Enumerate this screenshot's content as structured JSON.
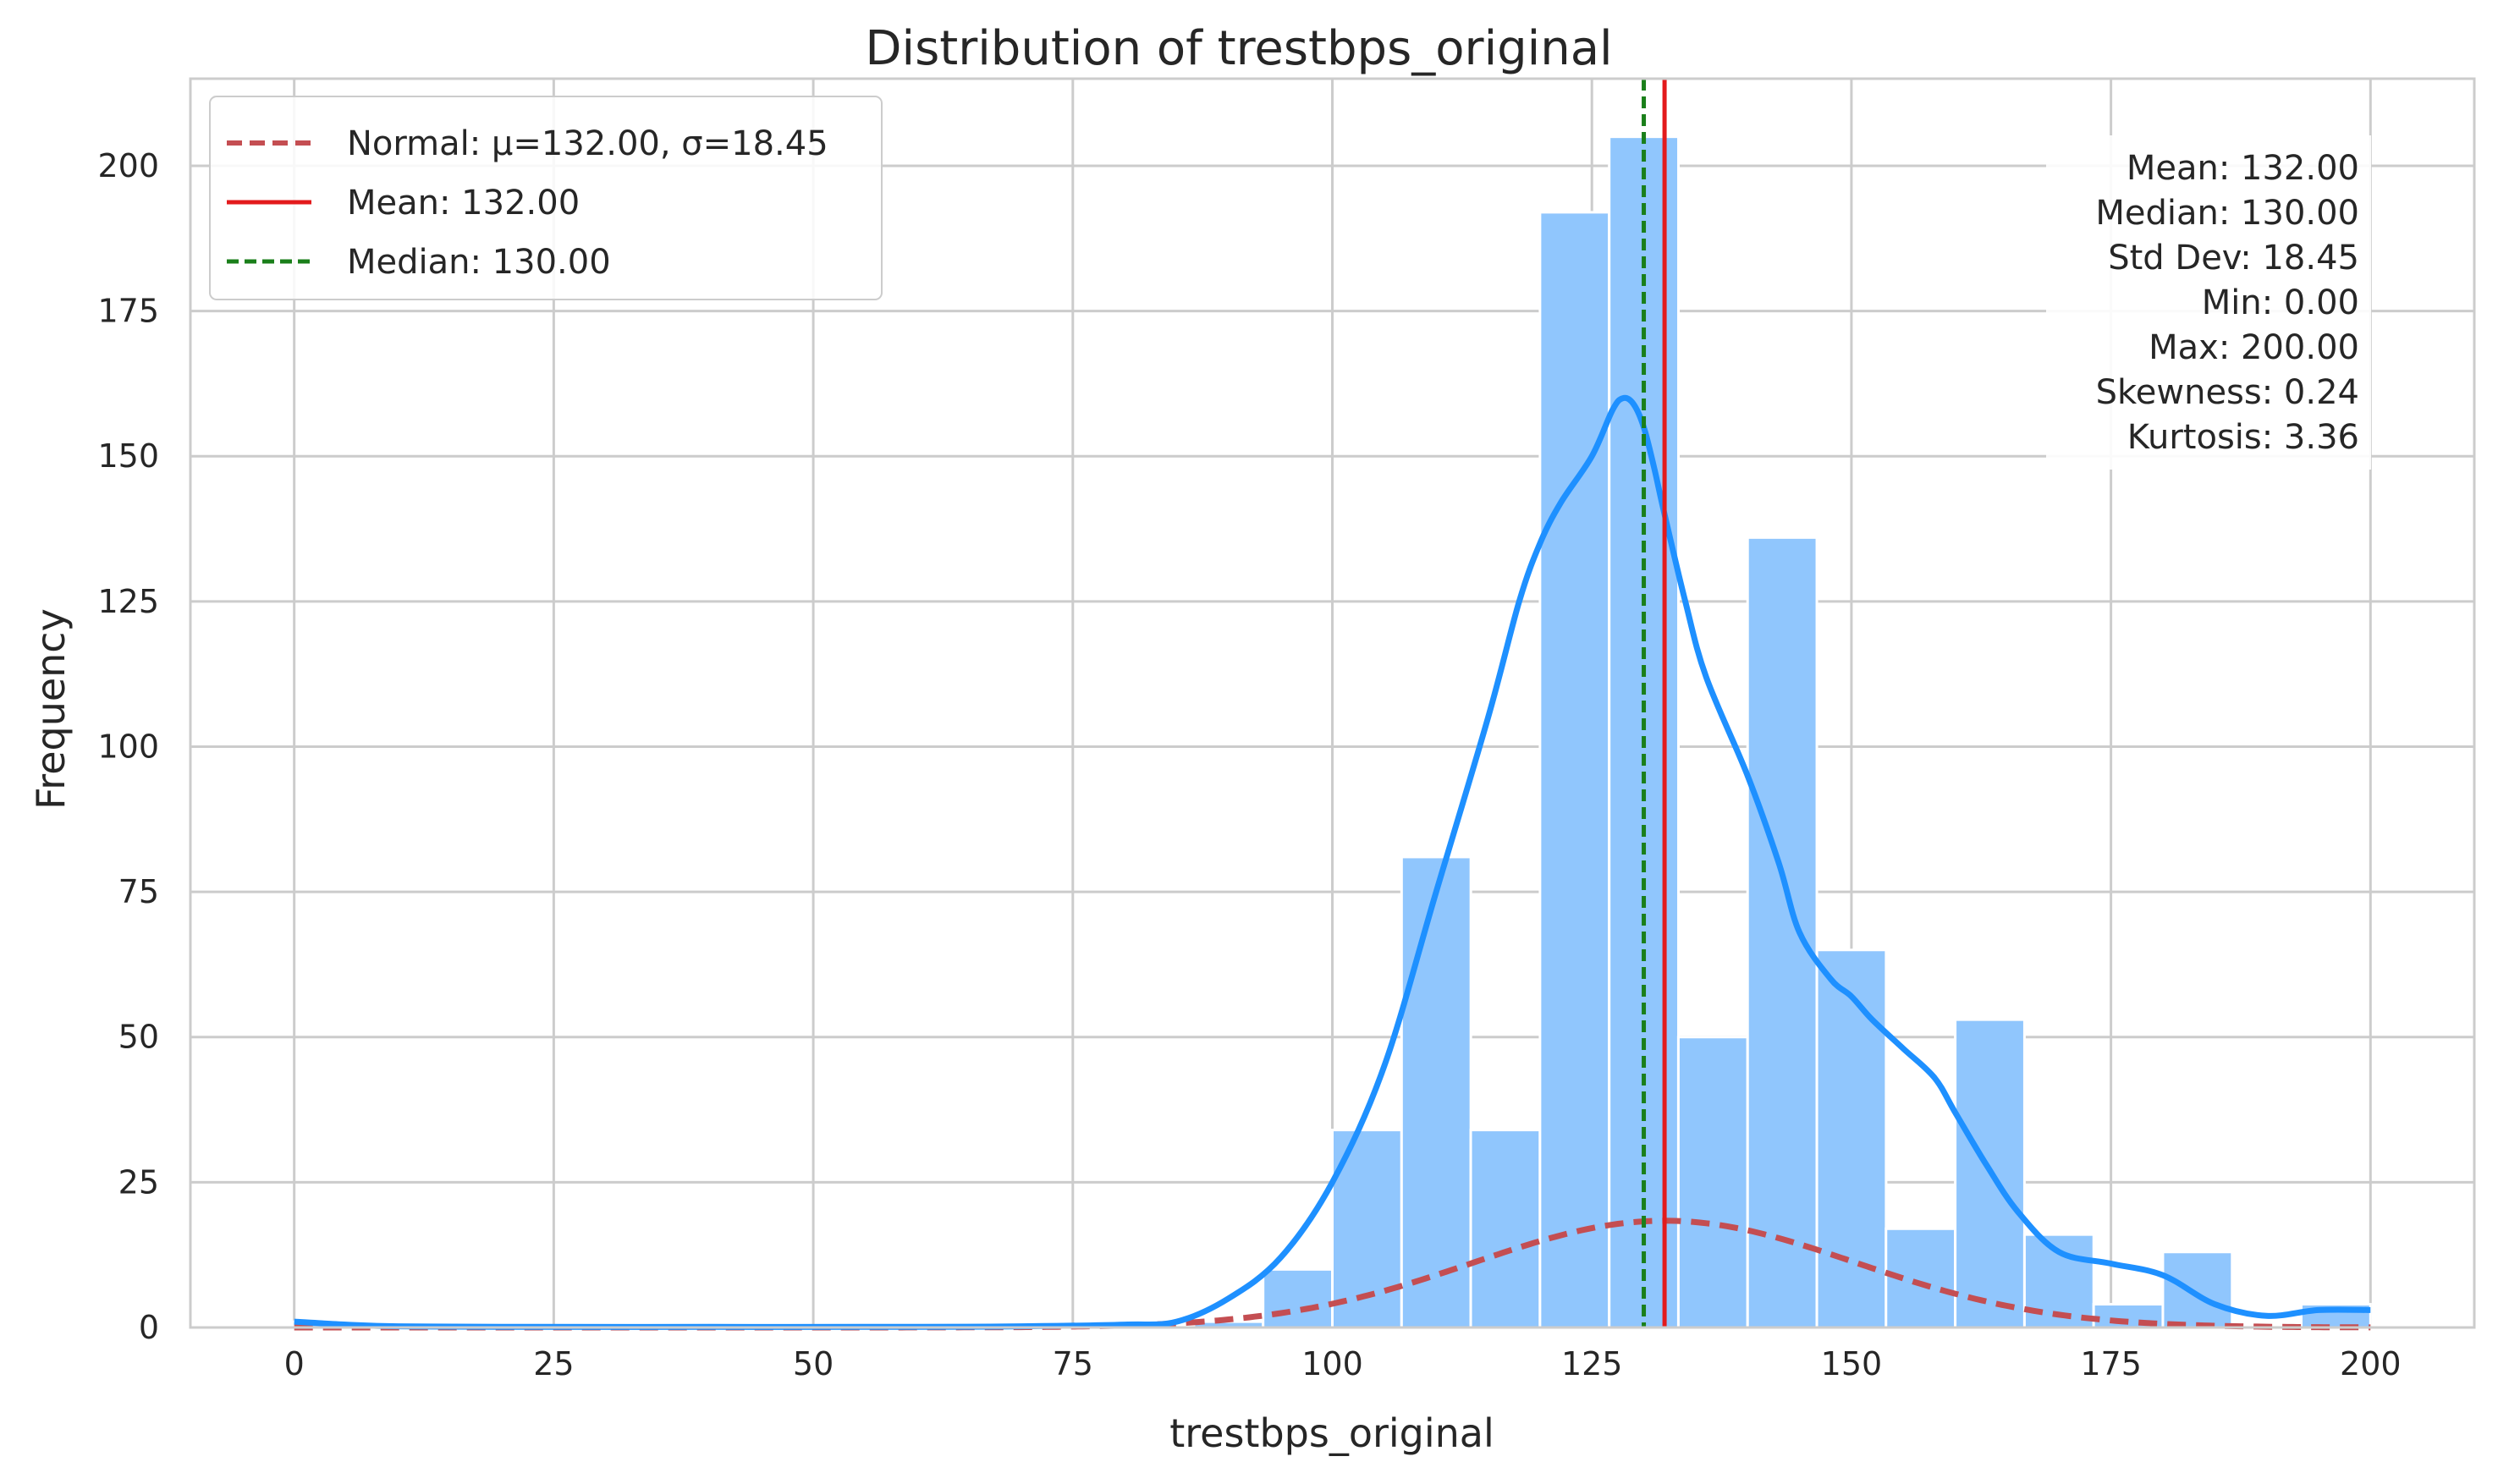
{
  "chart_data": {
    "type": "bar",
    "title": "Distribution of trestbps_original",
    "xlabel": "trestbps_original",
    "ylabel": "Frequency",
    "xlim": [
      -10,
      210
    ],
    "ylim": [
      0,
      215
    ],
    "xticks": [
      0,
      25,
      50,
      75,
      100,
      125,
      150,
      175,
      200
    ],
    "yticks": [
      0,
      25,
      50,
      75,
      100,
      125,
      150,
      175,
      200
    ],
    "grid": true,
    "bin_width": 6.67,
    "bins": [
      {
        "x0": 0.0,
        "count": 1
      },
      {
        "x0": 6.67,
        "count": 0
      },
      {
        "x0": 13.33,
        "count": 0
      },
      {
        "x0": 20.0,
        "count": 0
      },
      {
        "x0": 26.67,
        "count": 0
      },
      {
        "x0": 33.33,
        "count": 0
      },
      {
        "x0": 40.0,
        "count": 0
      },
      {
        "x0": 46.67,
        "count": 0
      },
      {
        "x0": 53.33,
        "count": 0
      },
      {
        "x0": 60.0,
        "count": 0
      },
      {
        "x0": 66.67,
        "count": 0
      },
      {
        "x0": 73.33,
        "count": 0
      },
      {
        "x0": 80.0,
        "count": 0
      },
      {
        "x0": 86.67,
        "count": 1
      },
      {
        "x0": 93.33,
        "count": 10
      },
      {
        "x0": 100.0,
        "count": 34
      },
      {
        "x0": 106.67,
        "count": 81
      },
      {
        "x0": 113.33,
        "count": 34
      },
      {
        "x0": 120.0,
        "count": 192
      },
      {
        "x0": 126.67,
        "count": 205
      },
      {
        "x0": 133.33,
        "count": 50
      },
      {
        "x0": 140.0,
        "count": 136
      },
      {
        "x0": 146.67,
        "count": 65
      },
      {
        "x0": 153.33,
        "count": 17
      },
      {
        "x0": 160.0,
        "count": 53
      },
      {
        "x0": 166.67,
        "count": 16
      },
      {
        "x0": 173.33,
        "count": 4
      },
      {
        "x0": 180.0,
        "count": 13
      },
      {
        "x0": 186.67,
        "count": 0
      },
      {
        "x0": 193.33,
        "count": 4
      }
    ],
    "kde": {
      "x": [
        0,
        5,
        10,
        20,
        40,
        60,
        70,
        80,
        85,
        90,
        95,
        100,
        105,
        110,
        115,
        118,
        120,
        122,
        125,
        127,
        128,
        129,
        130,
        131,
        132,
        134,
        136,
        140,
        143,
        145,
        148,
        150,
        152,
        155,
        158,
        160,
        163,
        166,
        170,
        175,
        180,
        185,
        190,
        195,
        200
      ],
      "y": [
        1,
        0.5,
        0.2,
        0.1,
        0.1,
        0.1,
        0.2,
        0.5,
        1,
        5,
        12,
        25,
        45,
        75,
        105,
        125,
        135,
        142,
        150,
        158,
        160,
        159,
        155,
        148,
        140,
        125,
        112,
        95,
        80,
        68,
        60,
        57,
        53,
        48,
        43,
        37,
        28,
        20,
        13,
        11,
        9,
        4,
        2,
        3,
        3
      ]
    },
    "normal": {
      "mu": 132.0,
      "sigma": 18.45,
      "scale": 850
    },
    "mean": 132.0,
    "median": 130.0,
    "legend": {
      "placement": "upper-left",
      "entries": [
        {
          "label": "Normal: μ=132.00, σ=18.45",
          "color": "#c44e52",
          "style": "dashed"
        },
        {
          "label": "Mean: 132.00",
          "color": "#e31a1c",
          "style": "solid"
        },
        {
          "label": "Median: 130.00",
          "color": "#1a7f1a",
          "style": "dashed"
        }
      ]
    },
    "stats_box": {
      "placement": "upper-right",
      "lines": [
        "Mean: 132.00",
        "Median: 130.00",
        "Std Dev: 18.45",
        "Min: 0.00",
        "Max: 200.00",
        "Skewness: 0.24",
        "Kurtosis: 3.36"
      ]
    },
    "colors": {
      "bar": "#90c6fd",
      "kde": "#1e90ff",
      "normal": "#c44e52",
      "mean": "#e31a1c",
      "median": "#1a7f1a",
      "grid": "#cccccc"
    }
  }
}
